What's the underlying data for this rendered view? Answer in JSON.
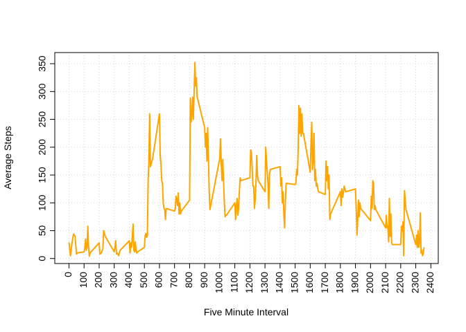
{
  "chart_data": {
    "type": "line",
    "x_label": "Five Minute Interval",
    "y_label": "Average Steps",
    "x": [
      0,
      10,
      20,
      30,
      40,
      50,
      55,
      100,
      105,
      110,
      115,
      120,
      125,
      130,
      135,
      140,
      200,
      205,
      215,
      225,
      230,
      240,
      300,
      305,
      310,
      315,
      320,
      330,
      335,
      340,
      400,
      405,
      410,
      415,
      420,
      425,
      430,
      435,
      440,
      445,
      450,
      455,
      500,
      505,
      510,
      515,
      520,
      525,
      530,
      535,
      540,
      545,
      550,
      555,
      600,
      605,
      610,
      615,
      620,
      625,
      630,
      635,
      640,
      645,
      700,
      705,
      710,
      715,
      720,
      725,
      730,
      735,
      740,
      745,
      800,
      805,
      810,
      815,
      820,
      825,
      830,
      835,
      840,
      845,
      850,
      855,
      900,
      905,
      910,
      915,
      920,
      925,
      930,
      935,
      940,
      1000,
      1005,
      1010,
      1015,
      1020,
      1025,
      1030,
      1035,
      1040,
      1045,
      1100,
      1105,
      1110,
      1115,
      1120,
      1125,
      1130,
      1135,
      1140,
      1200,
      1205,
      1210,
      1215,
      1220,
      1225,
      1230,
      1235,
      1240,
      1245,
      1250,
      1255,
      1300,
      1305,
      1310,
      1315,
      1320,
      1325,
      1330,
      1335,
      1400,
      1405,
      1410,
      1415,
      1420,
      1425,
      1430,
      1435,
      1440,
      1445,
      1500,
      1505,
      1510,
      1515,
      1520,
      1525,
      1530,
      1535,
      1540,
      1545,
      1550,
      1555,
      1600,
      1605,
      1610,
      1615,
      1620,
      1625,
      1630,
      1635,
      1640,
      1645,
      1650,
      1655,
      1700,
      1705,
      1710,
      1715,
      1720,
      1725,
      1730,
      1735,
      1800,
      1805,
      1810,
      1815,
      1820,
      1825,
      1830,
      1835,
      1900,
      1905,
      1910,
      1915,
      1920,
      1925,
      1930,
      1935,
      2000,
      2005,
      2010,
      2015,
      2020,
      2025,
      2030,
      2035,
      2100,
      2105,
      2110,
      2115,
      2120,
      2125,
      2130,
      2135,
      2140,
      2145,
      2200,
      2205,
      2210,
      2215,
      2220,
      2225,
      2230,
      2235,
      2300,
      2305,
      2310,
      2315,
      2320,
      2325,
      2330,
      2335,
      2340,
      2345,
      2350,
      2355
    ],
    "series": [
      {
        "color": "#FFA500",
        "values": [
          29,
          5,
          28,
          44,
          40,
          8,
          10,
          12,
          18,
          35,
          15,
          20,
          58,
          20,
          4,
          10,
          28,
          8,
          10,
          18,
          50,
          40,
          12,
          20,
          32,
          8,
          10,
          5,
          12,
          15,
          32,
          10,
          28,
          20,
          40,
          62,
          15,
          12,
          30,
          15,
          10,
          12,
          20,
          40,
          45,
          38,
          42,
          140,
          175,
          260,
          165,
          170,
          175,
          180,
          260,
          185,
          170,
          140,
          135,
          100,
          90,
          88,
          70,
          90,
          85,
          90,
          112,
          105,
          95,
          118,
          80,
          100,
          80,
          85,
          105,
          288,
          245,
          260,
          290,
          250,
          300,
          352,
          310,
          325,
          290,
          285,
          235,
          200,
          225,
          175,
          235,
          180,
          120,
          88,
          95,
          180,
          215,
          170,
          140,
          178,
          140,
          104,
          75,
          78,
          78,
          100,
          70,
          95,
          108,
          78,
          90,
          120,
          145,
          140,
          145,
          195,
          190,
          162,
          130,
          130,
          90,
          105,
          135,
          185,
          150,
          140,
          120,
          200,
          175,
          155,
          135,
          90,
          150,
          160,
          165,
          130,
          145,
          100,
          120,
          80,
          55,
          100,
          135,
          135,
          133,
          135,
          160,
          150,
          195,
          275,
          225,
          270,
          220,
          260,
          225,
          225,
          155,
          205,
          245,
          160,
          175,
          225,
          140,
          160,
          130,
          135,
          125,
          120,
          115,
          175,
          140,
          165,
          125,
          150,
          70,
          80,
          120,
          95,
          125,
          110,
          118,
          130,
          125,
          120,
          125,
          90,
          42,
          70,
          105,
          75,
          100,
          90,
          68,
          112,
          90,
          140,
          135,
          88,
          95,
          88,
          55,
          78,
          55,
          58,
          30,
          108,
          40,
          80,
          28,
          25,
          25,
          58,
          50,
          66,
          5,
          122,
          105,
          88,
          25,
          42,
          20,
          50,
          20,
          30,
          82,
          10,
          15,
          5,
          10,
          20
        ]
      }
    ],
    "xlim": [
      -94.2,
      2449.2
    ],
    "ylim": [
      -9,
      370
    ],
    "xticks": [
      0,
      100,
      200,
      300,
      400,
      500,
      600,
      700,
      800,
      900,
      1000,
      1100,
      1200,
      1300,
      1400,
      1500,
      1600,
      1700,
      1800,
      1900,
      2000,
      2100,
      2200,
      2300,
      2400
    ],
    "yticks": [
      0,
      50,
      100,
      150,
      200,
      250,
      300,
      350
    ],
    "grid": true
  }
}
